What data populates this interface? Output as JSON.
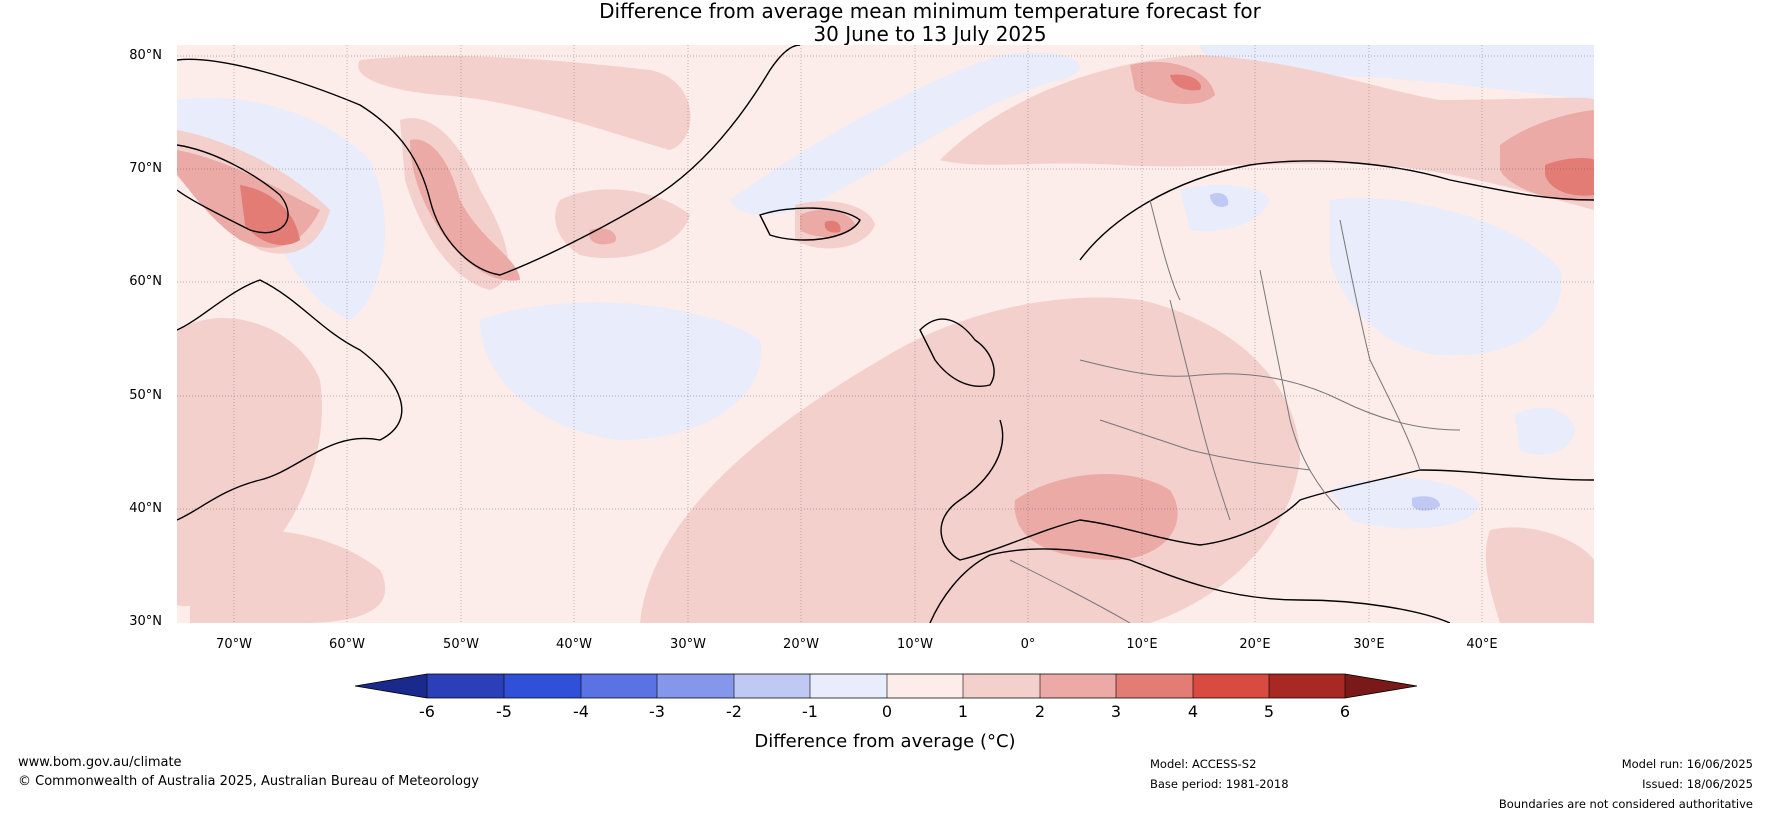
{
  "title": {
    "line1": "Difference from average mean minimum temperature forecast for",
    "line2": "30 June to 13 July 2025"
  },
  "map": {
    "lat_labels": [
      "80°N",
      "70°N",
      "60°N",
      "50°N",
      "40°N",
      "30°N"
    ],
    "lon_labels": [
      "70°W",
      "60°W",
      "50°W",
      "40°W",
      "30°W",
      "20°W",
      "10°W",
      "0°",
      "10°E",
      "20°E",
      "30°E",
      "40°E"
    ]
  },
  "colorbar": {
    "label": "Difference from average (°C)",
    "ticks": [
      "-6",
      "-5",
      "-4",
      "-3",
      "-2",
      "-1",
      "0",
      "1",
      "2",
      "3",
      "4",
      "5",
      "6"
    ],
    "colors": [
      "#1a2a8c",
      "#2a3fb8",
      "#3150d9",
      "#5a72e4",
      "#8497ea",
      "#bfc9f3",
      "#e8ecfb",
      "#fcecea",
      "#f4d0cd",
      "#ebaaa6",
      "#e27c75",
      "#d94a40",
      "#a82824",
      "#7a1a18"
    ]
  },
  "footer": {
    "website": "www.bom.gov.au/climate",
    "copyright": "© Commonwealth of Australia 2025, Australian Bureau of Meteorology",
    "model": "Model: ACCESS-S2",
    "base_period": "Base period: 1981-2018",
    "model_run": "Model run: 16/06/2025",
    "issued": "Issued: 18/06/2025",
    "disclaimer": "Boundaries are not considered authoritative"
  }
}
